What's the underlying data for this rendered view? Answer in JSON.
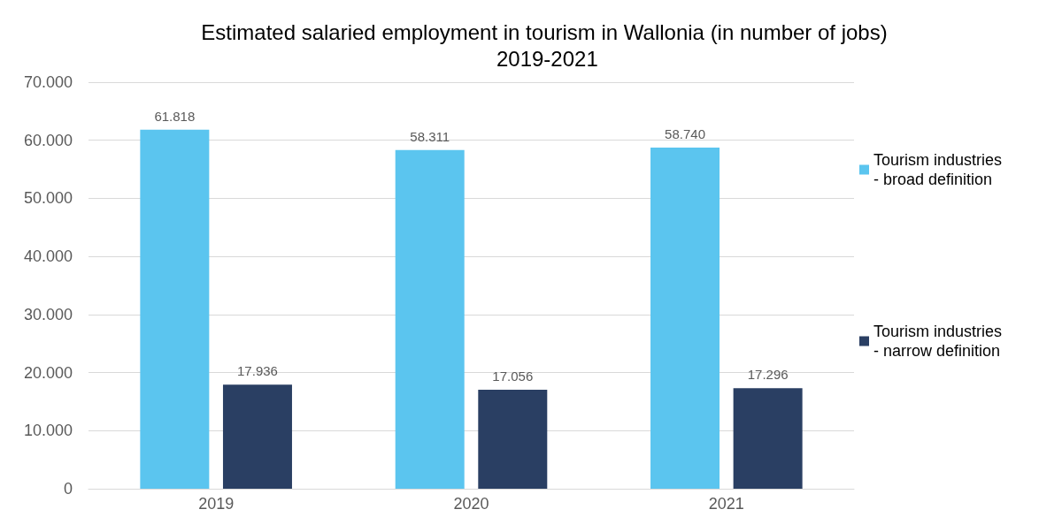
{
  "chart_data": {
    "type": "bar",
    "title": "Estimated salaried employment in tourism in Wallonia (in number of jobs) 2019-2021",
    "categories": [
      "2019",
      "2020",
      "2021"
    ],
    "series": [
      {
        "name": "Tourism industries - broad definition",
        "color": "#5bc5ef",
        "values": [
          61818,
          58311,
          58740
        ],
        "value_labels": [
          "61.818",
          "58.311",
          "58.740"
        ]
      },
      {
        "name": "Tourism industries - narrow definition",
        "color": "#2a3f63",
        "values": [
          17936,
          17056,
          17296
        ],
        "value_labels": [
          "17.936",
          "17.056",
          "17.296"
        ]
      }
    ],
    "ylim": [
      0,
      70000
    ],
    "yticks": [
      {
        "value": 0,
        "label": "0"
      },
      {
        "value": 10000,
        "label": "10.000"
      },
      {
        "value": 20000,
        "label": "20.000"
      },
      {
        "value": 30000,
        "label": "30.000"
      },
      {
        "value": 40000,
        "label": "40.000"
      },
      {
        "value": 50000,
        "label": "50.000"
      },
      {
        "value": 60000,
        "label": "60.000"
      },
      {
        "value": 70000,
        "label": "70.000"
      }
    ],
    "grid": "y",
    "legend": "right"
  }
}
